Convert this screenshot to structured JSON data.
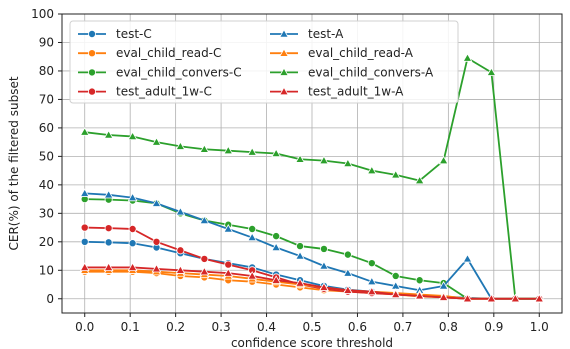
{
  "chart_data": {
    "type": "line",
    "title": "",
    "xlabel": "confidence score threshold",
    "ylabel": "CER(%) of the filtered subset",
    "xlim": [
      -0.05,
      1.05
    ],
    "ylim": [
      -5,
      100
    ],
    "xticks": [
      0.0,
      0.1,
      0.2,
      0.3,
      0.4,
      0.5,
      0.6,
      0.7,
      0.8,
      0.9,
      1.0
    ],
    "xtick_labels": [
      "0.0",
      "0.1",
      "0.2",
      "0.3",
      "0.4",
      "0.5",
      "0.6",
      "0.7",
      "0.8",
      "0.9",
      "1.0"
    ],
    "yticks": [
      0,
      10,
      20,
      30,
      40,
      50,
      60,
      70,
      80,
      90,
      100
    ],
    "ytick_labels": [
      "0",
      "10",
      "20",
      "30",
      "40",
      "50",
      "60",
      "70",
      "80",
      "90",
      "100"
    ],
    "grid": true,
    "legend_position": "top-left",
    "x": [
      0.0,
      0.0526,
      0.1053,
      0.1579,
      0.2105,
      0.2632,
      0.3158,
      0.3684,
      0.4211,
      0.4737,
      0.5263,
      0.5789,
      0.6316,
      0.6842,
      0.7368,
      0.7895,
      0.8421,
      0.8947,
      0.9474,
      1.0
    ],
    "series": [
      {
        "name": "test-C",
        "color": "#1f77b4",
        "marker": "circle",
        "values": [
          20.0,
          19.8,
          19.5,
          18.0,
          16.0,
          14.0,
          12.5,
          11.0,
          8.5,
          6.5,
          4.5,
          3.2,
          2.5,
          1.8,
          1.2,
          0.8,
          0.3,
          0.0,
          0.0,
          0.0
        ]
      },
      {
        "name": "eval_child_read-C",
        "color": "#ff7f0e",
        "marker": "circle",
        "values": [
          9.5,
          9.5,
          9.5,
          9.0,
          8.0,
          7.5,
          6.5,
          6.0,
          5.0,
          4.0,
          3.0,
          2.5,
          2.0,
          1.5,
          0.8,
          0.5,
          0.0,
          0.0,
          0.0,
          0.0
        ]
      },
      {
        "name": "eval_child_convers-C",
        "color": "#2ca02c",
        "marker": "circle",
        "values": [
          35.0,
          34.8,
          34.5,
          33.5,
          30.0,
          27.5,
          26.0,
          24.5,
          22.0,
          18.5,
          17.5,
          15.5,
          12.5,
          8.0,
          6.5,
          5.5,
          0.0,
          0.0,
          0.0,
          0.0
        ]
      },
      {
        "name": "test_adult_1w-C",
        "color": "#d62728",
        "marker": "circle",
        "values": [
          25.0,
          24.8,
          24.5,
          20.0,
          17.0,
          14.0,
          12.0,
          10.0,
          7.5,
          5.0,
          3.5,
          2.5,
          2.0,
          1.5,
          1.0,
          0.5,
          0.0,
          0.0,
          0.0,
          0.0
        ]
      },
      {
        "name": "test-A",
        "color": "#1f77b4",
        "marker": "triangle",
        "values": [
          37.0,
          36.5,
          35.5,
          33.5,
          30.5,
          27.5,
          24.5,
          21.5,
          18.0,
          15.0,
          11.5,
          9.0,
          6.0,
          4.5,
          3.0,
          4.5,
          14.0,
          0.0,
          0.0,
          0.0
        ]
      },
      {
        "name": "eval_child_read-A",
        "color": "#ff7f0e",
        "marker": "triangle",
        "values": [
          10.0,
          10.0,
          10.0,
          9.5,
          9.0,
          8.5,
          8.0,
          7.0,
          6.0,
          5.0,
          4.0,
          3.0,
          2.5,
          2.0,
          1.5,
          1.0,
          0.0,
          0.0,
          0.0,
          0.0
        ]
      },
      {
        "name": "eval_child_convers-A",
        "color": "#2ca02c",
        "marker": "triangle",
        "values": [
          58.5,
          57.5,
          57.0,
          55.0,
          53.5,
          52.5,
          52.0,
          51.5,
          51.0,
          49.0,
          48.5,
          47.5,
          45.0,
          43.5,
          41.5,
          48.5,
          84.5,
          79.5,
          0.0,
          0.0
        ]
      },
      {
        "name": "test_adult_1w-A",
        "color": "#d62728",
        "marker": "triangle",
        "values": [
          11.0,
          11.0,
          11.0,
          10.5,
          10.0,
          9.5,
          9.0,
          8.0,
          6.5,
          5.5,
          4.0,
          3.0,
          2.5,
          1.5,
          1.0,
          0.5,
          0.0,
          0.0,
          0.0,
          0.0
        ]
      }
    ]
  }
}
